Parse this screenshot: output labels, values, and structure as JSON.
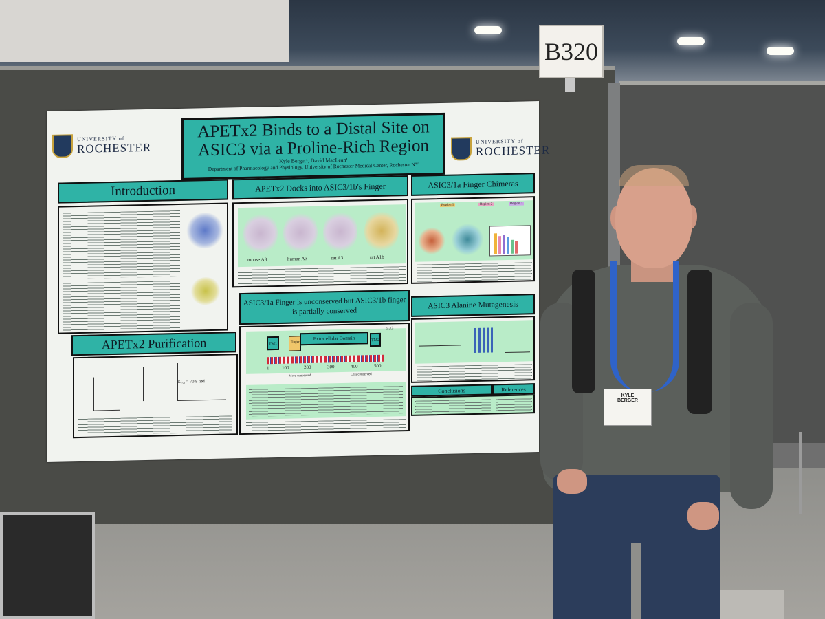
{
  "booth_sign": "B320",
  "poster": {
    "logo_univ": "UNIVERSITY of",
    "logo_name": "ROCHESTER",
    "title": "APETx2 Binds to a Distal Site on ASIC3 via a Proline-Rich Region",
    "authors": "Kyle Berger¹, David MacLean¹",
    "department": "Department of Pharmacology and Physiology, University of Rochester Medical Center, Rochester NY",
    "sections": {
      "introduction": "Introduction",
      "docks": "APETx2 Docks into ASIC3/1b's Finger",
      "chimeras": "ASIC3/1a Finger Chimeras",
      "unconserved": "ASIC3/1a Finger is unconserved but ASIC3/1b finger is partially conserved",
      "mutagenesis": "ASIC3 Alanine Mutagenesis",
      "purification": "APETx2 Purification",
      "conclusions": "Conclusions",
      "references": "References"
    },
    "docking_labels": [
      "mouse A3",
      "human A3",
      "rat A3",
      "rat A1b"
    ],
    "domain_labels": {
      "tm1": "TM1",
      "finger": "Finger",
      "ecd": "Extracellular Domain",
      "tm2": "TM2",
      "length": "533"
    },
    "axis_ticks": [
      "1",
      "100",
      "200",
      "300",
      "400",
      "500"
    ],
    "conservation": {
      "more": "More conserved",
      "less": "Less conserved"
    },
    "ic50": "IC₅₀ = 70.8 nM",
    "regions": [
      "Region 1",
      "Region 2",
      "Region 3"
    ]
  },
  "badge": {
    "first": "KYLE",
    "last": "BERGER"
  }
}
